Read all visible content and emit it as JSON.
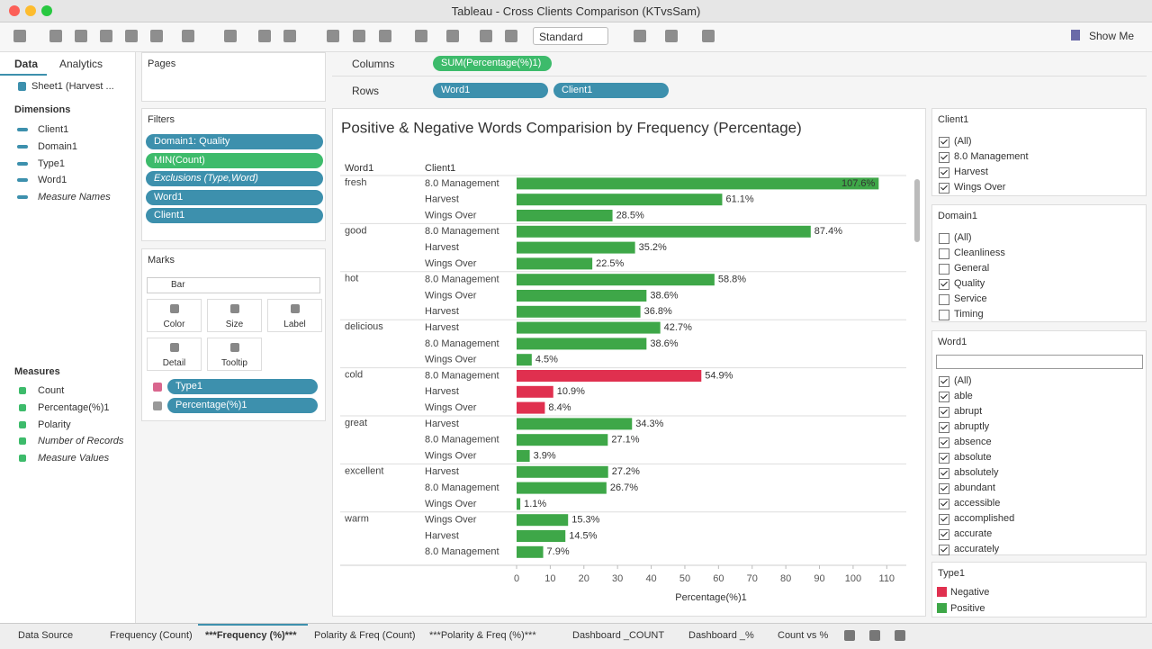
{
  "window_title": "Tableau - Cross Clients Comparison (KTvsSam)",
  "toolbar": {
    "view_mode": "Standard",
    "show_me": "Show Me"
  },
  "sidebar": {
    "tabs": [
      "Data",
      "Analytics"
    ],
    "source": "Sheet1 (Harvest ...",
    "dimensions_title": "Dimensions",
    "dimensions": [
      "Client1",
      "Domain1",
      "Type1",
      "Word1",
      "Measure Names"
    ],
    "measures_title": "Measures",
    "measures": [
      "Count",
      "Percentage(%)1",
      "Polarity",
      "Number of Records",
      "Measure Values"
    ]
  },
  "pages_title": "Pages",
  "filters": {
    "title": "Filters",
    "items": [
      "Domain1: Quality",
      "MIN(Count)",
      "Exclusions (Type,Word)",
      "Word1",
      "Client1"
    ]
  },
  "marks": {
    "title": "Marks",
    "mark_type": "Bar",
    "buttons": [
      "Color",
      "Size",
      "Label",
      "Detail",
      "Tooltip"
    ],
    "fields": [
      "Type1",
      "Percentage(%)1"
    ]
  },
  "shelves": {
    "columns_label": "Columns",
    "columns": [
      "SUM(Percentage(%)1)"
    ],
    "rows_label": "Rows",
    "rows": [
      "Word1",
      "Client1"
    ]
  },
  "chart_data": {
    "type": "bar",
    "title": "Positive  & Negative Words Comparision by Frequency (Percentage)",
    "row_headers": [
      "Word1",
      "Client1"
    ],
    "x_label": "Percentage(%)1",
    "xlim": [
      0,
      115
    ],
    "xticks": [
      0,
      10,
      20,
      30,
      40,
      50,
      60,
      70,
      80,
      90,
      100,
      110
    ],
    "groups": [
      {
        "name": "fresh",
        "color": "#3ea748",
        "clients": [
          "8.0 Management",
          "Harvest",
          "Wings Over"
        ],
        "values": [
          107.6,
          61.1,
          28.5
        ],
        "value_labels": [
          "107.6%",
          "61.1%",
          "28.5%"
        ]
      },
      {
        "name": "good",
        "color": "#3ea748",
        "clients": [
          "8.0 Management",
          "Harvest",
          "Wings Over"
        ],
        "values": [
          87.4,
          35.2,
          22.5
        ],
        "value_labels": [
          "87.4%",
          "35.2%",
          "22.5%"
        ]
      },
      {
        "name": "hot",
        "color": "#3ea748",
        "clients": [
          "8.0 Management",
          "Wings Over",
          "Harvest"
        ],
        "values": [
          58.8,
          38.6,
          36.8
        ],
        "value_labels": [
          "58.8%",
          "38.6%",
          "36.8%"
        ]
      },
      {
        "name": "delicious",
        "color": "#3ea748",
        "clients": [
          "Harvest",
          "8.0 Management",
          "Wings Over"
        ],
        "values": [
          42.7,
          38.6,
          4.5
        ],
        "value_labels": [
          "42.7%",
          "38.6%",
          "4.5%"
        ]
      },
      {
        "name": "cold",
        "color": "#e0304f",
        "clients": [
          "8.0 Management",
          "Harvest",
          "Wings Over"
        ],
        "values": [
          54.9,
          10.9,
          8.4
        ],
        "value_labels": [
          "54.9%",
          "10.9%",
          "8.4%"
        ]
      },
      {
        "name": "great",
        "color": "#3ea748",
        "clients": [
          "Harvest",
          "8.0 Management",
          "Wings Over"
        ],
        "values": [
          34.3,
          27.1,
          3.9
        ],
        "value_labels": [
          "34.3%",
          "27.1%",
          "3.9%"
        ]
      },
      {
        "name": "excellent",
        "color": "#3ea748",
        "clients": [
          "Harvest",
          "8.0 Management",
          "Wings Over"
        ],
        "values": [
          27.2,
          26.7,
          1.1
        ],
        "value_labels": [
          "27.2%",
          "26.7%",
          "1.1%"
        ]
      },
      {
        "name": "warm",
        "color": "#3ea748",
        "clients": [
          "Wings Over",
          "Harvest",
          "8.0 Management"
        ],
        "values": [
          15.3,
          14.5,
          7.9
        ],
        "value_labels": [
          "15.3%",
          "14.5%",
          "7.9%"
        ]
      }
    ]
  },
  "client_filter": {
    "title": "Client1",
    "items": [
      {
        "label": "(All)",
        "checked": true
      },
      {
        "label": "8.0 Management",
        "checked": true
      },
      {
        "label": "Harvest",
        "checked": true
      },
      {
        "label": "Wings Over",
        "checked": true
      }
    ]
  },
  "domain_filter": {
    "title": "Domain1",
    "items": [
      {
        "label": "(All)",
        "checked": false
      },
      {
        "label": "Cleanliness",
        "checked": false
      },
      {
        "label": "General",
        "checked": false
      },
      {
        "label": "Quality",
        "checked": true
      },
      {
        "label": "Service",
        "checked": false
      },
      {
        "label": "Timing",
        "checked": false
      }
    ]
  },
  "word_filter": {
    "title": "Word1",
    "items": [
      {
        "label": "(All)",
        "checked": true
      },
      {
        "label": "able",
        "checked": true
      },
      {
        "label": "abrupt",
        "checked": true
      },
      {
        "label": "abruptly",
        "checked": true
      },
      {
        "label": "absence",
        "checked": true
      },
      {
        "label": "absolute",
        "checked": true
      },
      {
        "label": "absolutely",
        "checked": true
      },
      {
        "label": "abundant",
        "checked": true
      },
      {
        "label": "accessible",
        "checked": true
      },
      {
        "label": "accomplished",
        "checked": true
      },
      {
        "label": "accurate",
        "checked": true
      },
      {
        "label": "accurately",
        "checked": true
      }
    ]
  },
  "legend": {
    "title": "Type1",
    "items": [
      {
        "name": "Negative",
        "color": "#e0304f"
      },
      {
        "name": "Positive",
        "color": "#3ea748"
      }
    ]
  },
  "tabs": {
    "active": 2,
    "items": [
      "Data Source",
      "Frequency (Count)",
      "***Frequency (%)***",
      "Polarity & Freq (Count)",
      "***Polarity & Freq (%)***",
      "Dashboard _COUNT",
      "Dashboard _%",
      "Count vs %"
    ]
  }
}
